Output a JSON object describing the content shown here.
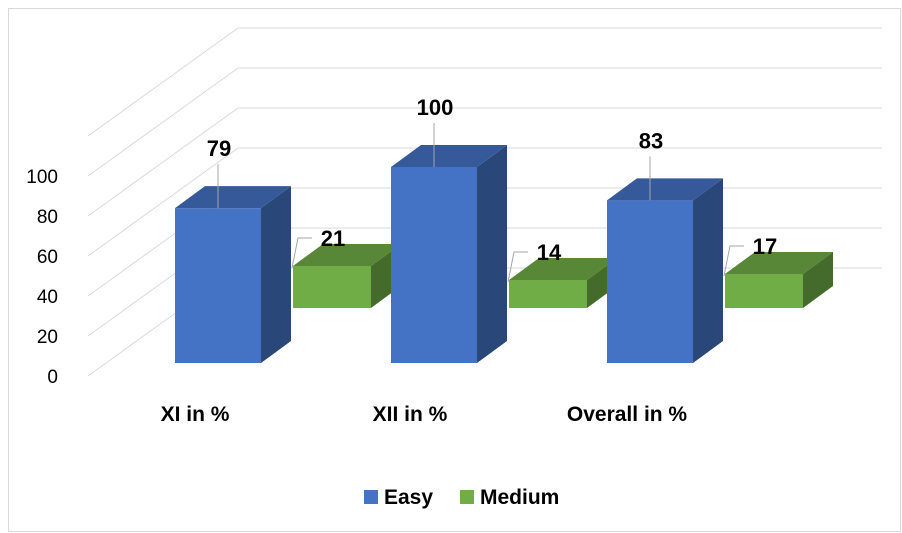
{
  "chart_data": {
    "type": "bar",
    "categories": [
      "XI in %",
      "XII in %",
      "Overall in %"
    ],
    "series": [
      {
        "name": "Easy",
        "values": [
          79,
          100,
          83
        ],
        "color": "#4472c4"
      },
      {
        "name": "Medium",
        "values": [
          21,
          14,
          17
        ],
        "color": "#70ad47"
      }
    ],
    "yticks": [
      0,
      20,
      40,
      60,
      80,
      100
    ],
    "ylim": [
      0,
      120
    ],
    "grid": true,
    "legend_position": "bottom",
    "three_d": true
  }
}
